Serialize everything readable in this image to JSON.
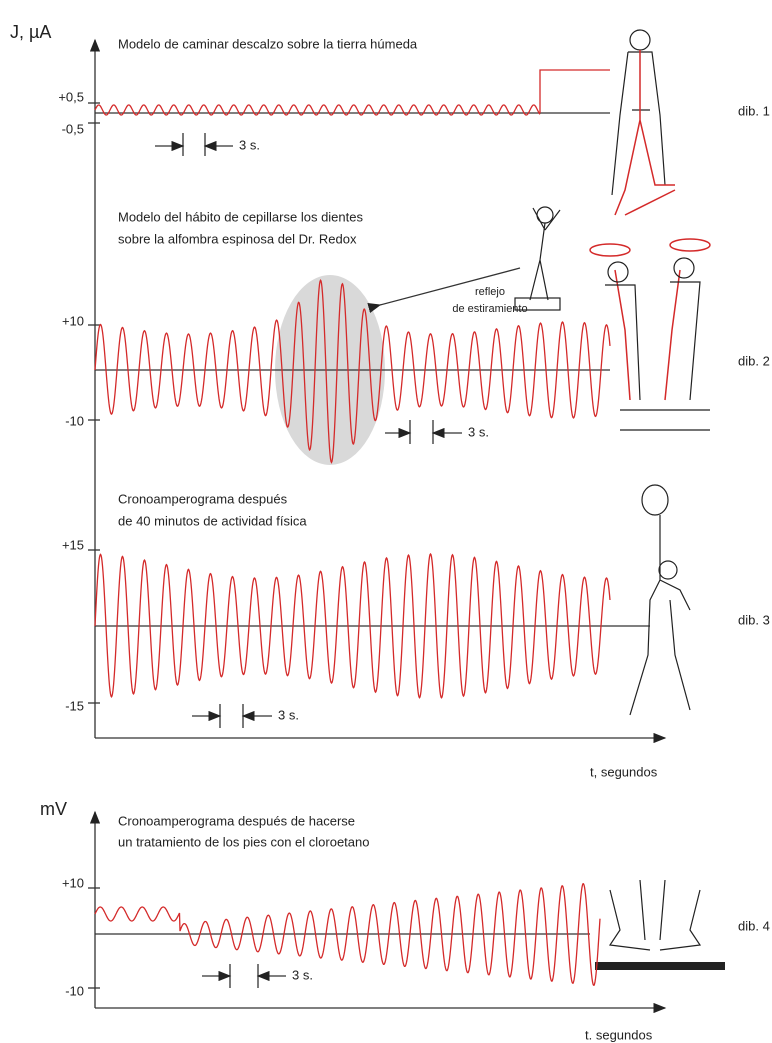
{
  "panel1": {
    "axis_label": "J, µA",
    "title": "Modelo de caminar descalzo sobre la tierra húmeda",
    "tick_top": "+0,5",
    "tick_bottom": "-0,5",
    "interval": "3 s.",
    "figure_label": "dib. 1"
  },
  "panel2": {
    "title_lines": [
      "Modelo del hábito de cepillarse los dientes",
      "sobre la alfombra espinosa del Dr. Redox"
    ],
    "tick_top": "+10",
    "tick_bottom": "-10",
    "callout_lines": [
      "reflejo",
      "de estiramiento"
    ],
    "interval": "3 s.",
    "figure_label": "dib. 2"
  },
  "panel3": {
    "title_lines": [
      "Cronoamperograma después",
      "de 40 minutos de actividad física"
    ],
    "tick_top": "+15",
    "tick_bottom": "-15",
    "interval": "3 s.",
    "figure_label": "dib. 3",
    "x_axis_label": "t, segundos"
  },
  "panel4": {
    "axis_label": "mV",
    "title_lines": [
      "Cronoamperograma después de hacerse",
      "un tratamiento de los pies con el cloroetano"
    ],
    "tick_top": "+10",
    "tick_bottom": "-10",
    "interval": "3 s.",
    "figure_label": "dib. 4",
    "x_axis_label": "t. segundos"
  }
}
